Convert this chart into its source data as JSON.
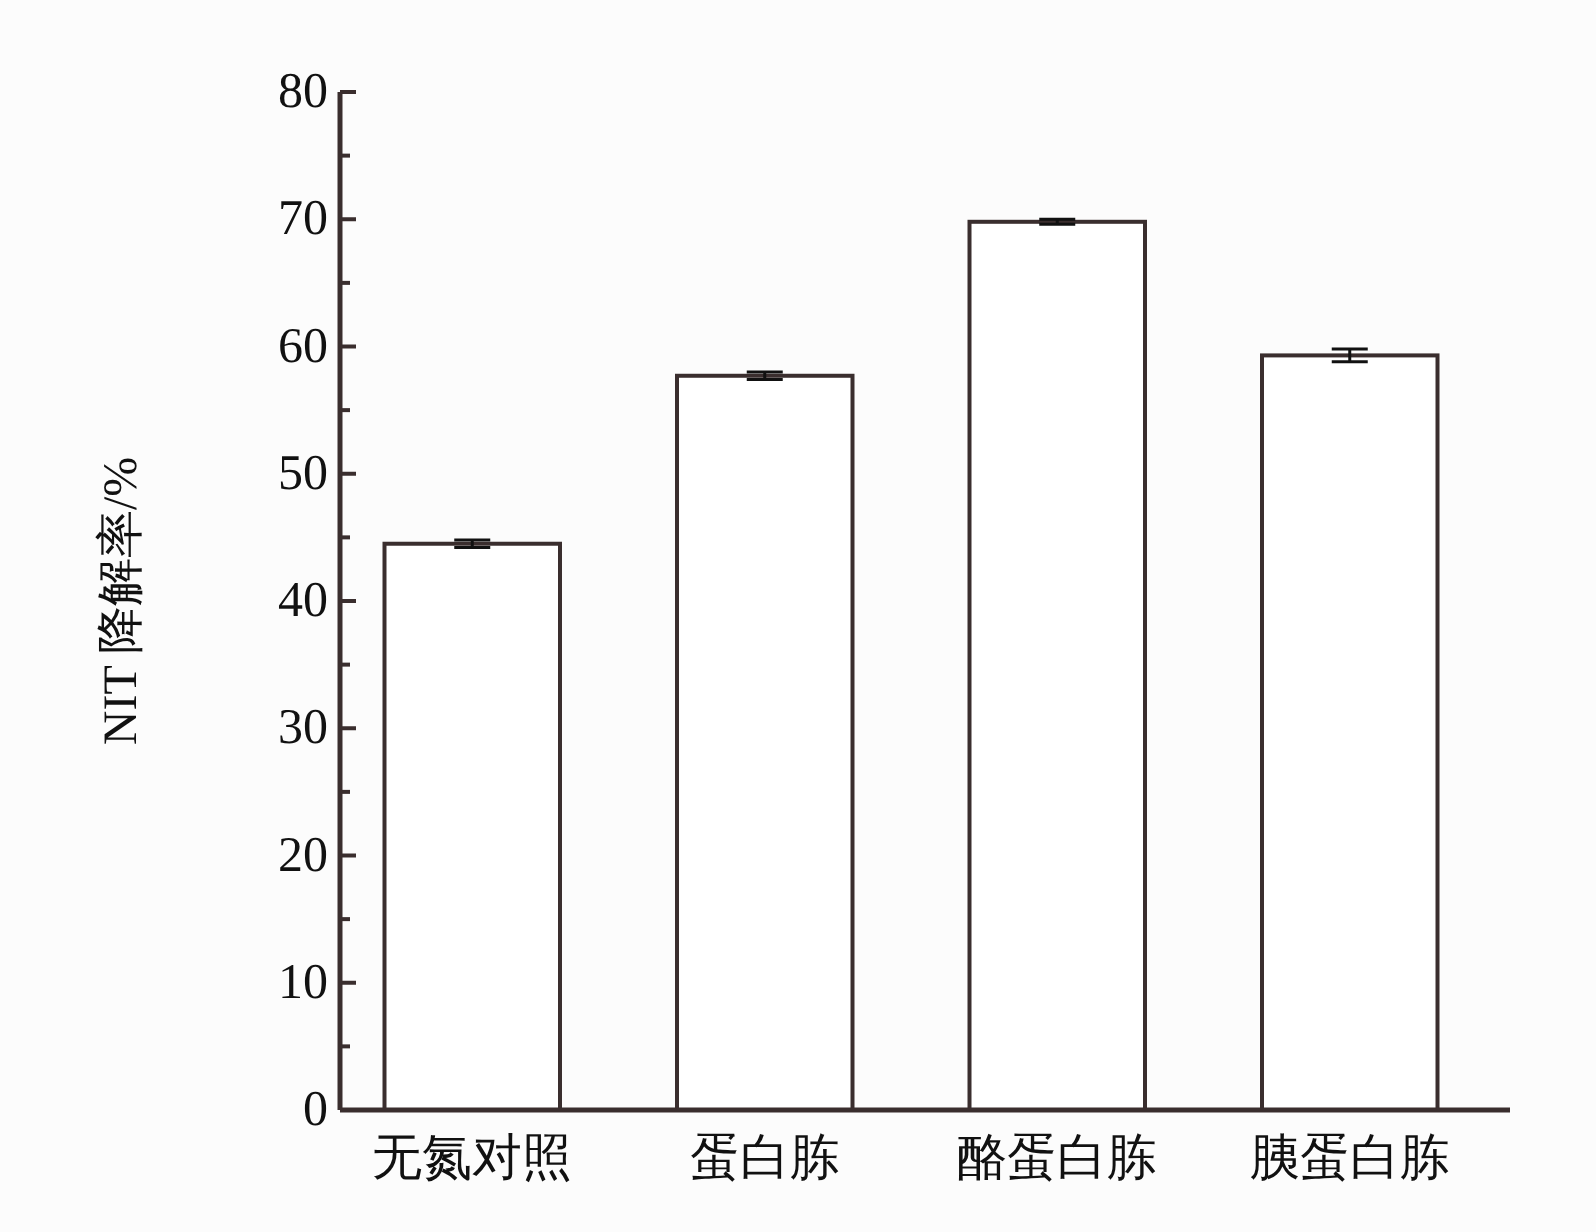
{
  "chart_data": {
    "type": "bar",
    "ylabel": "NIT 降解率/%",
    "categories": [
      "无氮对照",
      "蛋白胨",
      "酪蛋白胨",
      "胰蛋白胨"
    ],
    "values": [
      44.5,
      57.7,
      69.8,
      59.3
    ],
    "errors": [
      0.3,
      0.3,
      0.2,
      0.5
    ],
    "color": "#ffffff",
    "ylim": [
      0,
      80
    ],
    "yticks": [
      0,
      {
        "value": 5,
        "label": null
      },
      10,
      {
        "value": 15,
        "label": null
      },
      20,
      {
        "value": 25,
        "label": null
      },
      30,
      {
        "value": 35,
        "label": null
      },
      40,
      {
        "value": 45,
        "label": null
      },
      50,
      {
        "value": 55,
        "label": null
      },
      60,
      {
        "value": 65,
        "label": null
      },
      70,
      {
        "value": 75,
        "label": null
      },
      80
    ],
    "grid": false
  }
}
